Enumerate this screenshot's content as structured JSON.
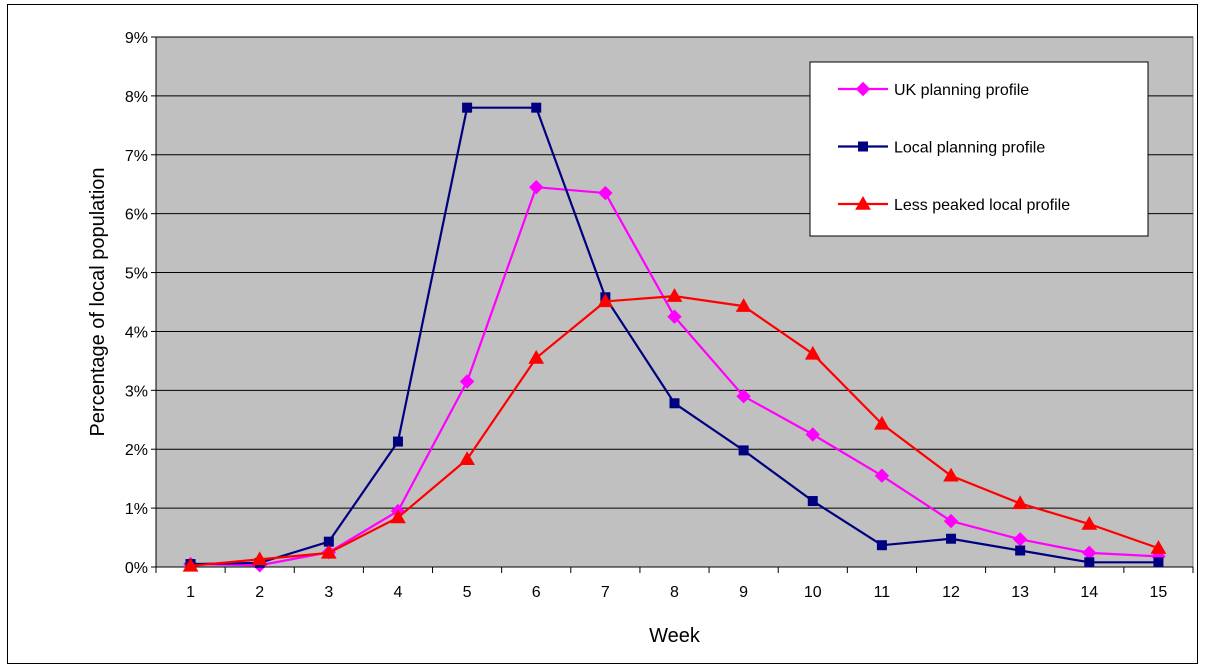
{
  "chart_data": {
    "type": "line",
    "title": "",
    "xlabel": "Week",
    "ylabel": "Percentage of local population",
    "x": [
      1,
      2,
      3,
      4,
      5,
      6,
      7,
      8,
      9,
      10,
      11,
      12,
      13,
      14,
      15
    ],
    "ylim": [
      0,
      9
    ],
    "yticks": [
      "0%",
      "1%",
      "2%",
      "3%",
      "4%",
      "5%",
      "6%",
      "7%",
      "8%",
      "9%"
    ],
    "grid": true,
    "legend_position": "top-right",
    "plot_background": "#C0C0C0",
    "series": [
      {
        "name": "UK planning profile",
        "color": "#FF00FF",
        "marker": "diamond",
        "values": [
          0.05,
          0.03,
          0.25,
          0.95,
          3.15,
          6.45,
          6.35,
          4.25,
          2.9,
          2.25,
          1.55,
          0.78,
          0.47,
          0.24,
          0.18
        ]
      },
      {
        "name": "Local planning profile",
        "color": "#000080",
        "marker": "square",
        "values": [
          0.05,
          0.07,
          0.43,
          2.13,
          7.8,
          7.8,
          4.58,
          2.78,
          1.98,
          1.12,
          0.37,
          0.48,
          0.28,
          0.08,
          0.08
        ]
      },
      {
        "name": "Less peaked local profile",
        "color": "#FF0000",
        "marker": "triangle",
        "values": [
          0.02,
          0.13,
          0.24,
          0.84,
          1.83,
          3.55,
          4.51,
          4.6,
          4.43,
          3.62,
          2.43,
          1.55,
          1.08,
          0.73,
          0.32
        ]
      }
    ]
  }
}
